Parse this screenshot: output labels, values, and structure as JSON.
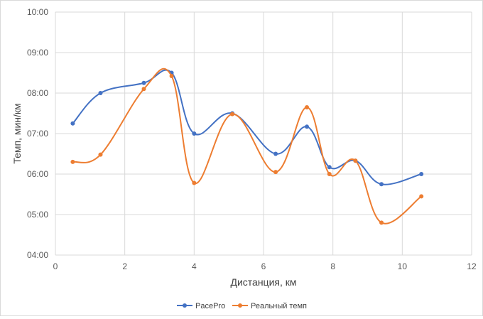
{
  "chart_data": {
    "type": "line",
    "smooth": true,
    "xlabel": "Дистанция, км",
    "ylabel": "Темп, мин/км",
    "xlim": [
      0,
      12
    ],
    "ylim": [
      4,
      10
    ],
    "x_ticks": [
      "0",
      "2",
      "4",
      "6",
      "8",
      "10",
      "12"
    ],
    "y_ticks": [
      "04:00",
      "05:00",
      "06:00",
      "07:00",
      "08:00",
      "09:00",
      "10:00"
    ],
    "grid": {
      "x": true,
      "y": true
    },
    "legend_position": "bottom",
    "series": [
      {
        "name": "PacePro",
        "color": "#4472C4",
        "x": [
          0.5,
          1.3,
          2.55,
          3.35,
          4.0,
          5.1,
          6.35,
          7.25,
          7.9,
          8.65,
          9.4,
          10.55
        ],
        "y": [
          7.25,
          8.0,
          8.25,
          8.5,
          7.0,
          7.5,
          6.5,
          7.17,
          6.17,
          6.33,
          5.75,
          6.0
        ]
      },
      {
        "name": "Реальный темп",
        "color": "#ED7D31",
        "x": [
          0.5,
          1.3,
          2.55,
          3.35,
          4.0,
          5.1,
          6.35,
          7.25,
          7.9,
          8.65,
          9.4,
          10.55
        ],
        "y": [
          6.3,
          6.48,
          8.1,
          8.42,
          5.78,
          7.48,
          6.05,
          7.65,
          6.0,
          6.33,
          4.8,
          5.45
        ]
      }
    ]
  }
}
